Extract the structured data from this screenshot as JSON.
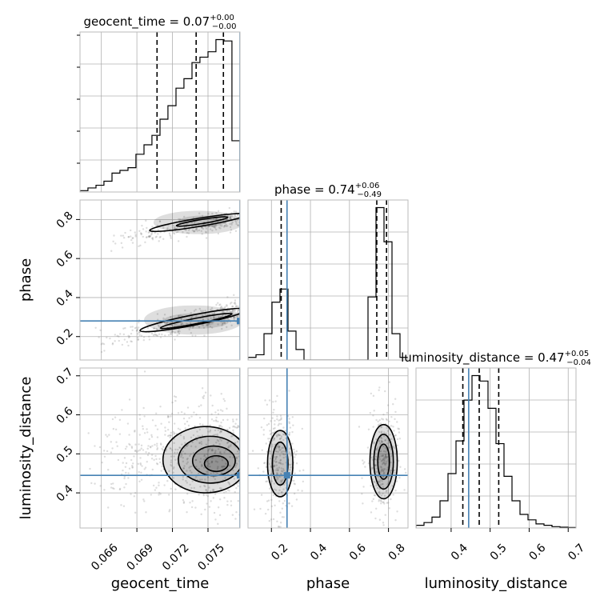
{
  "chart_data": {
    "type": "corner",
    "truth_color": "#4682b4",
    "parameters": [
      "geocent_time",
      "phase",
      "luminosity_distance"
    ],
    "titles": {
      "geocent_time": {
        "name": "geocent_time",
        "value": "0.07",
        "plus": "+0.00",
        "minus": "−0.00"
      },
      "phase": {
        "name": "phase",
        "value": "0.74",
        "plus": "+0.06",
        "minus": "−0.49"
      },
      "luminosity_distance": {
        "name": "luminosity_distance",
        "value": "0.47",
        "plus": "+0.05",
        "minus": "−0.04"
      }
    },
    "axes": {
      "geocent_time": {
        "label": "geocent_time",
        "range": [
          0.0642,
          0.0777
        ],
        "ticks": [
          0.066,
          0.069,
          0.072,
          0.075
        ],
        "tick_labels": [
          "0.066",
          "0.069",
          "0.072",
          "0.075"
        ]
      },
      "phase": {
        "label": "phase",
        "range": [
          0.08,
          0.9
        ],
        "ticks": [
          0.2,
          0.4,
          0.6,
          0.8
        ],
        "tick_labels": [
          "0.2",
          "0.4",
          "0.6",
          "0.8"
        ]
      },
      "luminosity_distance": {
        "label": "luminosity_distance",
        "range": [
          0.31,
          0.72
        ],
        "ticks": [
          0.4,
          0.5,
          0.6,
          0.7
        ],
        "tick_labels": [
          "0.4",
          "0.5",
          "0.6",
          "0.7"
        ]
      }
    },
    "truths": {
      "geocent_time": 0.0777,
      "phase": 0.28,
      "luminosity_distance": 0.445
    },
    "quantiles": {
      "geocent_time": [
        0.0707,
        0.074,
        0.0763
      ],
      "phase": [
        0.25,
        0.74,
        0.79
      ],
      "luminosity_distance": [
        0.43,
        0.472,
        0.522
      ]
    },
    "histograms": {
      "geocent_time": {
        "edges": [
          0.0642,
          0.06487,
          0.06555,
          0.06622,
          0.0669,
          0.06757,
          0.06825,
          0.06892,
          0.0696,
          0.07027,
          0.07095,
          0.07162,
          0.0723,
          0.07297,
          0.07365,
          0.07432,
          0.075,
          0.07567,
          0.07635,
          0.07702,
          0.0777
        ],
        "counts": [
          0.5,
          1.5,
          2.5,
          4.0,
          7.0,
          8.0,
          9.0,
          14.0,
          17.5,
          21.0,
          27.0,
          32.0,
          38.5,
          42.0,
          48.0,
          50.0,
          52.0,
          56.5,
          56.0,
          19.0
        ]
      },
      "phase": {
        "edges": [
          0.08,
          0.121,
          0.162,
          0.203,
          0.244,
          0.285,
          0.326,
          0.367,
          0.408,
          0.449,
          0.49,
          0.531,
          0.572,
          0.613,
          0.654,
          0.695,
          0.736,
          0.777,
          0.818,
          0.859,
          0.9
        ],
        "counts": [
          1,
          2,
          10,
          22,
          27,
          11,
          4,
          0,
          0,
          0,
          0,
          0,
          0,
          0,
          0,
          24,
          58,
          45,
          10,
          1
        ]
      },
      "luminosity_distance": {
        "edges": [
          0.31,
          0.3305,
          0.351,
          0.3715,
          0.392,
          0.4125,
          0.433,
          0.4535,
          0.474,
          0.4945,
          0.515,
          0.5355,
          0.556,
          0.5765,
          0.597,
          0.6175,
          0.638,
          0.6585,
          0.679,
          0.6995,
          0.72
        ],
        "counts": [
          1,
          2,
          4,
          10,
          20,
          32,
          47,
          56,
          54,
          44,
          31,
          19,
          10,
          5,
          3,
          1.5,
          1,
          0.5,
          0.3,
          0.2
        ]
      }
    },
    "sample_clusters": {
      "phase_vs_geocent_time": [
        {
          "x": [
            0.0653,
            0.0777
          ],
          "y0": 0.16,
          "slope": 14.0,
          "spread_y": 0.03,
          "n": 360
        },
        {
          "x": [
            0.0665,
            0.0777
          ],
          "y0": 0.68,
          "slope": 11.5,
          "spread_y": 0.025,
          "n": 300
        }
      ],
      "luminosity_distance_vs_geocent_time": [
        {
          "x": [
            0.0645,
            0.0777
          ],
          "center_y": 0.49,
          "spread_y": 0.07,
          "n": 600
        }
      ],
      "luminosity_distance_vs_phase": [
        {
          "center_x": 0.24,
          "spread_x": 0.045,
          "center_y": 0.48,
          "spread_y": 0.07,
          "n": 300
        },
        {
          "center_x": 0.77,
          "spread_x": 0.04,
          "center_y": 0.48,
          "spread_y": 0.07,
          "n": 300
        }
      ]
    },
    "contours": {
      "phase_vs_geocent_time": [
        {
          "cx": 0.0738,
          "cy": 0.285,
          "rx": 0.0042,
          "ry": 0.075,
          "tilt_slope": 12.0
        },
        {
          "cx": 0.074,
          "cy": 0.28,
          "rx": 0.0028,
          "ry": 0.04,
          "tilt_slope": 12.0
        },
        {
          "cx": 0.0742,
          "cy": 0.785,
          "rx": 0.0038,
          "ry": 0.06,
          "tilt_slope": 10.0
        },
        {
          "cx": 0.0745,
          "cy": 0.79,
          "rx": 0.002,
          "ry": 0.03,
          "tilt_slope": 10.0
        }
      ],
      "luminosity_distance_vs_geocent_time": [
        {
          "cx": 0.0748,
          "cy": 0.485,
          "rx": 0.0036,
          "ry": 0.085
        },
        {
          "cx": 0.0752,
          "cy": 0.485,
          "rx": 0.0027,
          "ry": 0.06
        },
        {
          "cx": 0.0755,
          "cy": 0.482,
          "rx": 0.0018,
          "ry": 0.038
        },
        {
          "cx": 0.0757,
          "cy": 0.475,
          "rx": 0.001,
          "ry": 0.02
        }
      ],
      "luminosity_distance_vs_phase": [
        {
          "cx": 0.245,
          "cy": 0.475,
          "rx": 0.065,
          "ry": 0.085
        },
        {
          "cx": 0.245,
          "cy": 0.475,
          "rx": 0.04,
          "ry": 0.055
        },
        {
          "cx": 0.775,
          "cy": 0.48,
          "rx": 0.07,
          "ry": 0.095
        },
        {
          "cx": 0.775,
          "cy": 0.48,
          "rx": 0.05,
          "ry": 0.07
        },
        {
          "cx": 0.775,
          "cy": 0.48,
          "rx": 0.03,
          "ry": 0.045
        }
      ]
    }
  }
}
